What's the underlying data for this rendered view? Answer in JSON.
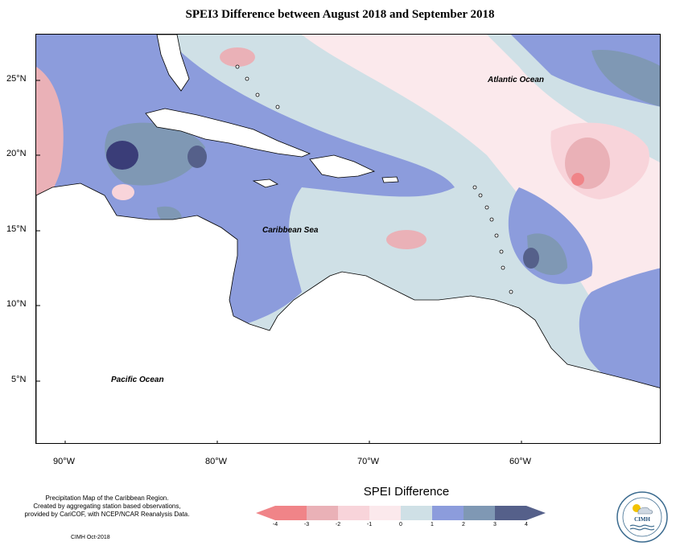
{
  "title": "SPEI3 Difference between August 2018 and September 2018",
  "axes": {
    "lat_labels": [
      "25°N",
      "20°N",
      "15°N",
      "10°N",
      "5°N"
    ],
    "lon_labels": [
      "90°W",
      "80°W",
      "70°W",
      "60°W"
    ]
  },
  "ocean_labels": {
    "atlantic": "Atlantic Ocean",
    "caribbean": "Caribbean Sea",
    "pacific": "Pacific Ocean"
  },
  "legend": {
    "title": "SPEI Difference",
    "ticks": [
      "-4",
      "-3",
      "-2",
      "-1",
      "0",
      "1",
      "2",
      "3",
      "4"
    ],
    "colors": [
      "#f08488",
      "#eab1b7",
      "#f8d4da",
      "#fbe9ec",
      "#cfe0e6",
      "#8c9cdc",
      "#7f98b4",
      "#55608a"
    ]
  },
  "footer": {
    "credit_line1": "Precipitation Map of the Caribbean Region.",
    "credit_line2": "Created by aggregating station based observations,",
    "credit_line3": "provided by CariCOF, with NCEP/NCAR Reanalysis Data.",
    "date": "CIMH Oct-2018"
  },
  "logo": {
    "text": "CIMH",
    "icon": "sun-icon"
  }
}
